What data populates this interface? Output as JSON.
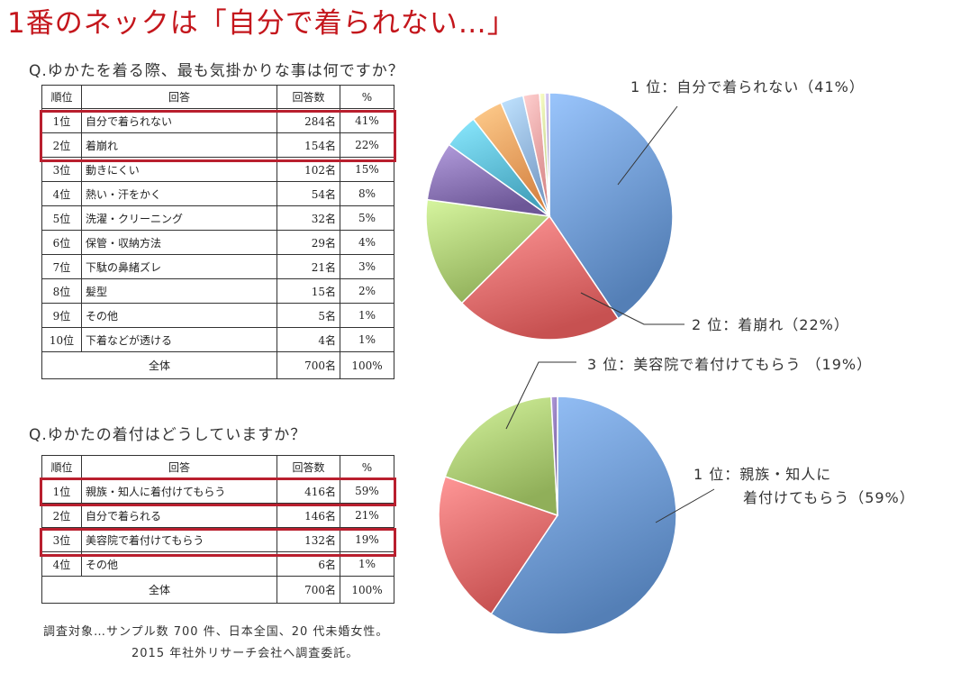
{
  "headline": "1番のネックは「自分で着られない…」",
  "colors": {
    "headline": "#c4161c",
    "highlight": "#b91f2e",
    "slices": [
      "#6d98cf",
      "#e06a6a",
      "#a9c872",
      "#8670b0",
      "#5ebcd6",
      "#f0a060",
      "#93b6e0",
      "#f1a3a3",
      "#cfe39b",
      "#b3a7d3"
    ]
  },
  "q1": {
    "title": "Q.ゆかたを着る際、最も気掛かりな事は何ですか？",
    "headers": {
      "rank": "順位",
      "answer": "回答",
      "count": "回答数",
      "pct": "%"
    },
    "rows": [
      {
        "rank": "1位",
        "answer": "自分で着られない",
        "count": "284名",
        "pct": "41%"
      },
      {
        "rank": "2位",
        "answer": "着崩れ",
        "count": "154名",
        "pct": "22%"
      },
      {
        "rank": "3位",
        "answer": "動きにくい",
        "count": "102名",
        "pct": "15%"
      },
      {
        "rank": "4位",
        "answer": "熱い・汗をかく",
        "count": "54名",
        "pct": "8%"
      },
      {
        "rank": "5位",
        "answer": "洗濯・クリーニング",
        "count": "32名",
        "pct": "5%"
      },
      {
        "rank": "6位",
        "answer": "保管・収納方法",
        "count": "29名",
        "pct": "4%"
      },
      {
        "rank": "7位",
        "answer": "下駄の鼻緒ズレ",
        "count": "21名",
        "pct": "3%"
      },
      {
        "rank": "8位",
        "answer": "髪型",
        "count": "15名",
        "pct": "2%"
      },
      {
        "rank": "9位",
        "answer": "その他",
        "count": "5名",
        "pct": "1%"
      },
      {
        "rank": "10位",
        "answer": "下着などが透ける",
        "count": "4名",
        "pct": "1%"
      }
    ],
    "total": {
      "label": "全体",
      "count": "700名",
      "pct": "100%"
    },
    "callouts": {
      "first": "1 位：自分で着られない（41%）",
      "second": "2 位：着崩れ（22%）"
    }
  },
  "q2": {
    "title": "Q.ゆかたの着付はどうしていますか？",
    "headers": {
      "rank": "順位",
      "answer": "回答",
      "count": "回答数",
      "pct": "%"
    },
    "rows": [
      {
        "rank": "1位",
        "answer": "親族・知人に着付けてもらう",
        "count": "416名",
        "pct": "59%"
      },
      {
        "rank": "2位",
        "answer": "自分で着られる",
        "count": "146名",
        "pct": "21%"
      },
      {
        "rank": "3位",
        "answer": "美容院で着付けてもらう",
        "count": "132名",
        "pct": "19%"
      },
      {
        "rank": "4位",
        "answer": "その他",
        "count": "6名",
        "pct": "1%"
      }
    ],
    "total": {
      "label": "全体",
      "count": "700名",
      "pct": "100%"
    },
    "callouts": {
      "first_line1": "1 位：親族・知人に",
      "first_line2": "着付けてもらう（59%）",
      "third": "3 位：美容院で着付けてもらう （19%）"
    }
  },
  "note": {
    "line1": "調査対象…サンプル数 700 件、日本全国、20 代未婚女性。",
    "line2": "2015 年社外リサーチ会社へ調査委託。"
  },
  "chart_data": [
    {
      "type": "pie",
      "categories": [
        "自分で着られない",
        "着崩れ",
        "動きにくい",
        "熱い・汗をかく",
        "洗濯・クリーニング",
        "保管・収納方法",
        "下駄の鼻緒ズレ",
        "髪型",
        "その他",
        "下着などが透ける"
      ],
      "values": [
        284,
        154,
        102,
        54,
        32,
        29,
        21,
        15,
        5,
        4
      ],
      "title": "Q.ゆかたを着る際、最も気掛かりな事は何ですか？"
    },
    {
      "type": "pie",
      "categories": [
        "親族・知人に着付けてもらう",
        "自分で着られる",
        "美容院で着付けてもらう",
        "その他"
      ],
      "values": [
        416,
        146,
        132,
        6
      ],
      "title": "Q.ゆかたの着付はどうしていますか？"
    }
  ]
}
